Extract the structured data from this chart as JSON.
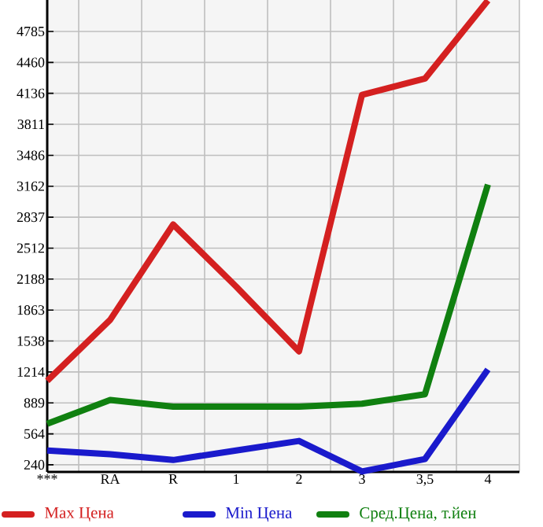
{
  "chart_data": {
    "type": "line",
    "categories": [
      "***",
      "RA",
      "R",
      "1",
      "2",
      "3",
      "3,5",
      "4"
    ],
    "series": [
      {
        "name": "Max Цена",
        "color": "#d42020",
        "values": [
          1120,
          1760,
          2760,
          2110,
          1430,
          4120,
          4290,
          5110
        ]
      },
      {
        "name": "Min Цена",
        "color": "#1a1acc",
        "values": [
          390,
          350,
          290,
          390,
          490,
          170,
          300,
          1240
        ]
      },
      {
        "name": "Сред.Цена, т.йен",
        "color": "#108010",
        "values": [
          670,
          920,
          850,
          850,
          850,
          880,
          980,
          3180
        ]
      }
    ],
    "ylim": [
      165,
      5115
    ],
    "yticks": [
      240,
      564,
      889,
      1214,
      1538,
      1863,
      2188,
      2512,
      2837,
      3162,
      3486,
      3811,
      4136,
      4460,
      4785
    ],
    "grid": true,
    "legend": "bottom",
    "marker": "none",
    "line_style": "solid"
  }
}
